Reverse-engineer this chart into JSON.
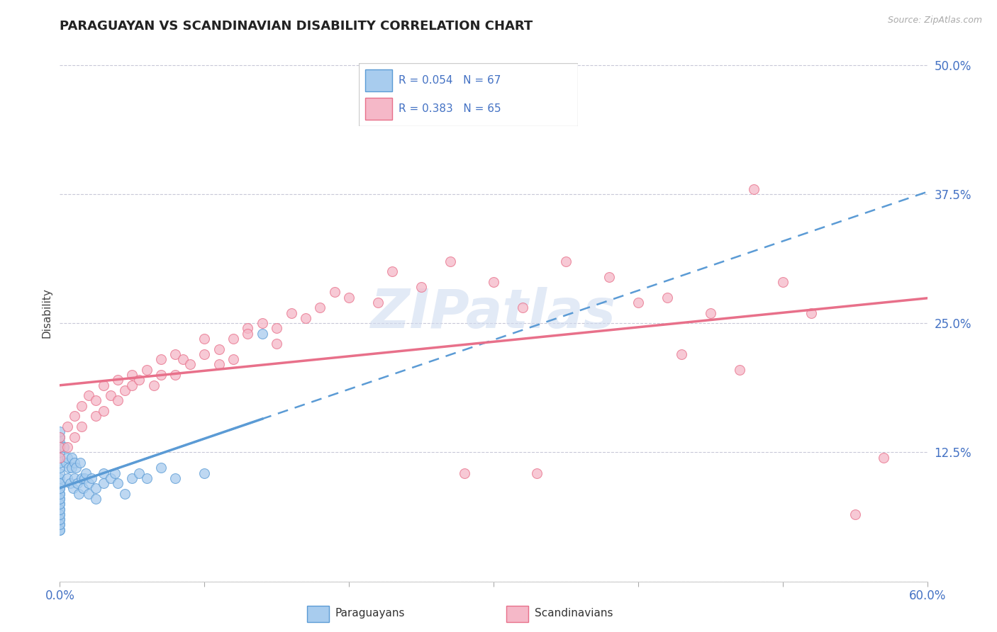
{
  "title": "PARAGUAYAN VS SCANDINAVIAN DISABILITY CORRELATION CHART",
  "source": "Source: ZipAtlas.com",
  "ylabel_label": "Disability",
  "x_min": 0.0,
  "x_max": 0.6,
  "y_min": 0.0,
  "y_max": 0.52,
  "x_ticks": [
    0.0,
    0.1,
    0.2,
    0.3,
    0.4,
    0.5,
    0.6
  ],
  "x_tick_labels": [
    "0.0%",
    "",
    "",
    "",
    "",
    "",
    "60.0%"
  ],
  "y_ticks": [
    0.0,
    0.125,
    0.25,
    0.375,
    0.5
  ],
  "y_tick_labels": [
    "",
    "12.5%",
    "25.0%",
    "37.5%",
    "50.0%"
  ],
  "paraguayan_color": "#A8CCEE",
  "scandinavian_color": "#F5B8C8",
  "paraguayan_edge_color": "#5B9BD5",
  "scandinavian_edge_color": "#E8708A",
  "paraguayan_line_color": "#5B9BD5",
  "scandinavian_line_color": "#E8708A",
  "R_paraguayan": 0.054,
  "N_paraguayan": 67,
  "R_scandinavian": 0.383,
  "N_scandinavian": 65,
  "grid_color": "#C8C8D8",
  "background_color": "#FFFFFF",
  "tick_color": "#4472C4",
  "paraguayan_x": [
    0.0,
    0.0,
    0.0,
    0.0,
    0.0,
    0.0,
    0.0,
    0.0,
    0.0,
    0.0,
    0.0,
    0.0,
    0.0,
    0.0,
    0.0,
    0.0,
    0.0,
    0.0,
    0.0,
    0.0,
    0.0,
    0.0,
    0.0,
    0.0,
    0.0,
    0.0,
    0.0,
    0.0,
    0.0,
    0.0,
    0.003,
    0.004,
    0.005,
    0.005,
    0.006,
    0.007,
    0.008,
    0.008,
    0.009,
    0.01,
    0.01,
    0.011,
    0.012,
    0.013,
    0.014,
    0.015,
    0.016,
    0.017,
    0.018,
    0.02,
    0.02,
    0.022,
    0.025,
    0.025,
    0.03,
    0.03,
    0.035,
    0.038,
    0.04,
    0.045,
    0.05,
    0.055,
    0.06,
    0.07,
    0.08,
    0.1,
    0.14
  ],
  "paraguayan_y": [
    0.05,
    0.055,
    0.06,
    0.065,
    0.07,
    0.075,
    0.08,
    0.085,
    0.09,
    0.095,
    0.1,
    0.105,
    0.11,
    0.115,
    0.12,
    0.125,
    0.13,
    0.135,
    0.14,
    0.145,
    0.05,
    0.055,
    0.06,
    0.065,
    0.07,
    0.075,
    0.08,
    0.085,
    0.09,
    0.095,
    0.13,
    0.115,
    0.1,
    0.12,
    0.11,
    0.095,
    0.12,
    0.11,
    0.09,
    0.115,
    0.1,
    0.11,
    0.095,
    0.085,
    0.115,
    0.1,
    0.09,
    0.1,
    0.105,
    0.095,
    0.085,
    0.1,
    0.09,
    0.08,
    0.105,
    0.095,
    0.1,
    0.105,
    0.095,
    0.085,
    0.1,
    0.105,
    0.1,
    0.11,
    0.1,
    0.105,
    0.24
  ],
  "scandinavian_x": [
    0.0,
    0.0,
    0.0,
    0.005,
    0.005,
    0.01,
    0.01,
    0.015,
    0.015,
    0.02,
    0.025,
    0.025,
    0.03,
    0.03,
    0.035,
    0.04,
    0.04,
    0.045,
    0.05,
    0.05,
    0.055,
    0.06,
    0.065,
    0.07,
    0.07,
    0.08,
    0.08,
    0.085,
    0.09,
    0.1,
    0.1,
    0.11,
    0.11,
    0.12,
    0.12,
    0.13,
    0.13,
    0.14,
    0.15,
    0.15,
    0.16,
    0.17,
    0.18,
    0.19,
    0.2,
    0.22,
    0.23,
    0.25,
    0.27,
    0.3,
    0.32,
    0.35,
    0.38,
    0.4,
    0.42,
    0.43,
    0.45,
    0.48,
    0.5,
    0.52,
    0.55,
    0.57,
    0.47,
    0.33,
    0.28
  ],
  "scandinavian_y": [
    0.12,
    0.13,
    0.14,
    0.15,
    0.13,
    0.16,
    0.14,
    0.17,
    0.15,
    0.18,
    0.16,
    0.175,
    0.165,
    0.19,
    0.18,
    0.175,
    0.195,
    0.185,
    0.19,
    0.2,
    0.195,
    0.205,
    0.19,
    0.2,
    0.215,
    0.2,
    0.22,
    0.215,
    0.21,
    0.22,
    0.235,
    0.21,
    0.225,
    0.215,
    0.235,
    0.245,
    0.24,
    0.25,
    0.23,
    0.245,
    0.26,
    0.255,
    0.265,
    0.28,
    0.275,
    0.27,
    0.3,
    0.285,
    0.31,
    0.29,
    0.265,
    0.31,
    0.295,
    0.27,
    0.275,
    0.22,
    0.26,
    0.38,
    0.29,
    0.26,
    0.065,
    0.12,
    0.205,
    0.105,
    0.105
  ]
}
